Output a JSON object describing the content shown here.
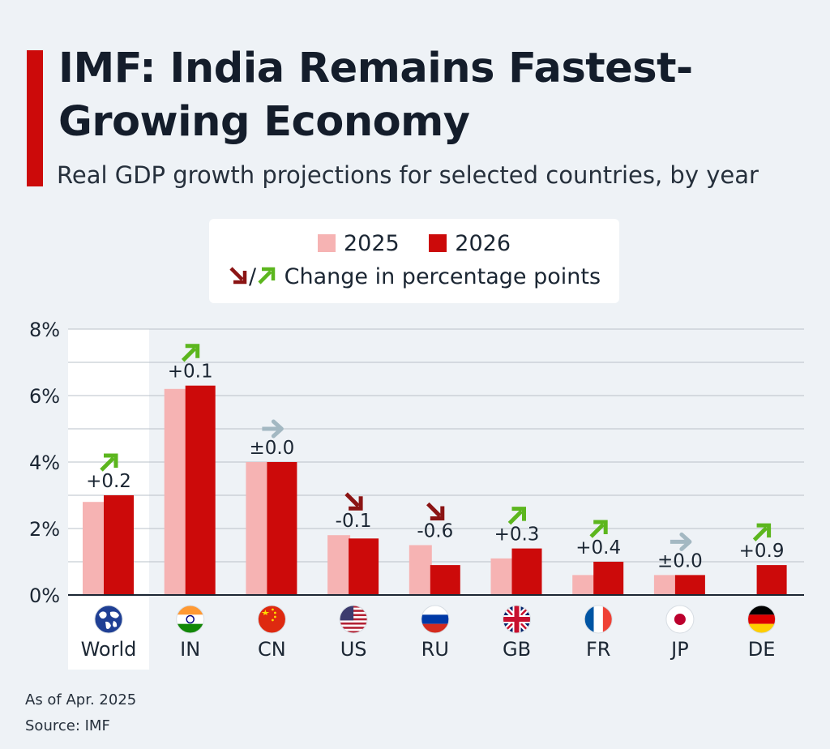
{
  "header": {
    "title": "IMF: India Remains Fastest-Growing Economy",
    "subtitle": "Real GDP growth projections for selected countries, by year",
    "accent_color": "#cc0a0a"
  },
  "legend": {
    "items": [
      {
        "label": "2025",
        "color": "#f6b3b3"
      },
      {
        "label": "2026",
        "color": "#cc0a0a"
      }
    ],
    "separator": "/",
    "change_label": "Change in percentage points",
    "down_arrow_color": "#8b1414",
    "up_arrow_color": "#5cb61e",
    "flat_arrow_color": "#a3b8c2"
  },
  "chart_data": {
    "type": "bar",
    "categories": [
      "World",
      "IN",
      "CN",
      "US",
      "RU",
      "GB",
      "FR",
      "JP",
      "DE"
    ],
    "series": [
      {
        "name": "2025",
        "values": [
          2.8,
          6.2,
          4.0,
          1.8,
          1.5,
          1.1,
          0.6,
          0.6,
          0.0
        ]
      },
      {
        "name": "2026",
        "values": [
          3.0,
          6.3,
          4.0,
          1.7,
          0.9,
          1.4,
          1.0,
          0.6,
          0.9
        ]
      }
    ],
    "change_labels": [
      "+0.2",
      "+0.1",
      "±0.0",
      "-0.1",
      "-0.6",
      "+0.3",
      "+0.4",
      "±0.0",
      "+0.9"
    ],
    "change_direction": [
      "up",
      "up",
      "flat",
      "down",
      "down",
      "up",
      "up",
      "flat",
      "up"
    ],
    "flag_icons": [
      "globe-icon",
      "india-flag-icon",
      "china-flag-icon",
      "usa-flag-icon",
      "russia-flag-icon",
      "uk-flag-icon",
      "france-flag-icon",
      "japan-flag-icon",
      "germany-flag-icon"
    ],
    "yticks": [
      "0%",
      "2%",
      "4%",
      "6%",
      "8%"
    ],
    "ylim": [
      0,
      8
    ],
    "grid": true,
    "highlighted_category": "World"
  },
  "footer": {
    "note": "As of Apr. 2025",
    "source": "Source: IMF"
  }
}
